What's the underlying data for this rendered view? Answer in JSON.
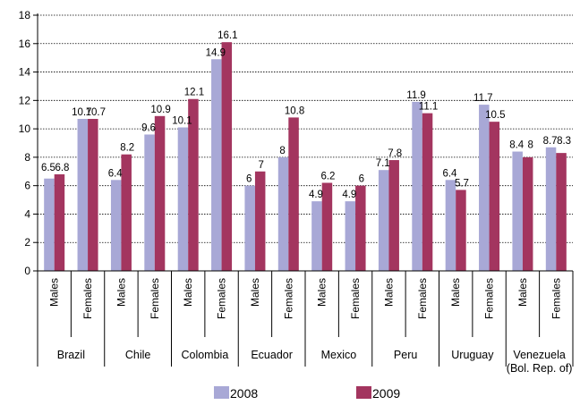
{
  "chart_data": {
    "type": "bar",
    "title": "",
    "xlabel": "",
    "ylabel": "",
    "ylim": [
      0,
      18
    ],
    "yticks": [
      0,
      2,
      4,
      6,
      8,
      10,
      12,
      14,
      16,
      18
    ],
    "grid": true,
    "legend_position": "bottom",
    "groups": [
      {
        "label": "Brazil",
        "sublabel": ""
      },
      {
        "label": "Chile",
        "sublabel": ""
      },
      {
        "label": "Colombia",
        "sublabel": ""
      },
      {
        "label": "Ecuador",
        "sublabel": ""
      },
      {
        "label": "Mexico",
        "sublabel": ""
      },
      {
        "label": "Peru",
        "sublabel": ""
      },
      {
        "label": "Uruguay",
        "sublabel": ""
      },
      {
        "label": "Venezuela",
        "sublabel": "(Bol. Rep. of)"
      }
    ],
    "subcategories": [
      "Males",
      "Females"
    ],
    "series": [
      {
        "name": "2008",
        "color": "#a8a8d6",
        "values": [
          6.5,
          10.7,
          6.4,
          9.6,
          10.1,
          14.9,
          6,
          8,
          4.9,
          4.9,
          7.1,
          11.9,
          6.4,
          11.7,
          8.4,
          8.7
        ]
      },
      {
        "name": "2009",
        "color": "#a3355f",
        "values": [
          6.8,
          10.7,
          8.2,
          10.9,
          12.1,
          16.1,
          7,
          10.8,
          6.2,
          6,
          7.8,
          11.1,
          5.7,
          10.5,
          8,
          8.3
        ]
      }
    ]
  }
}
